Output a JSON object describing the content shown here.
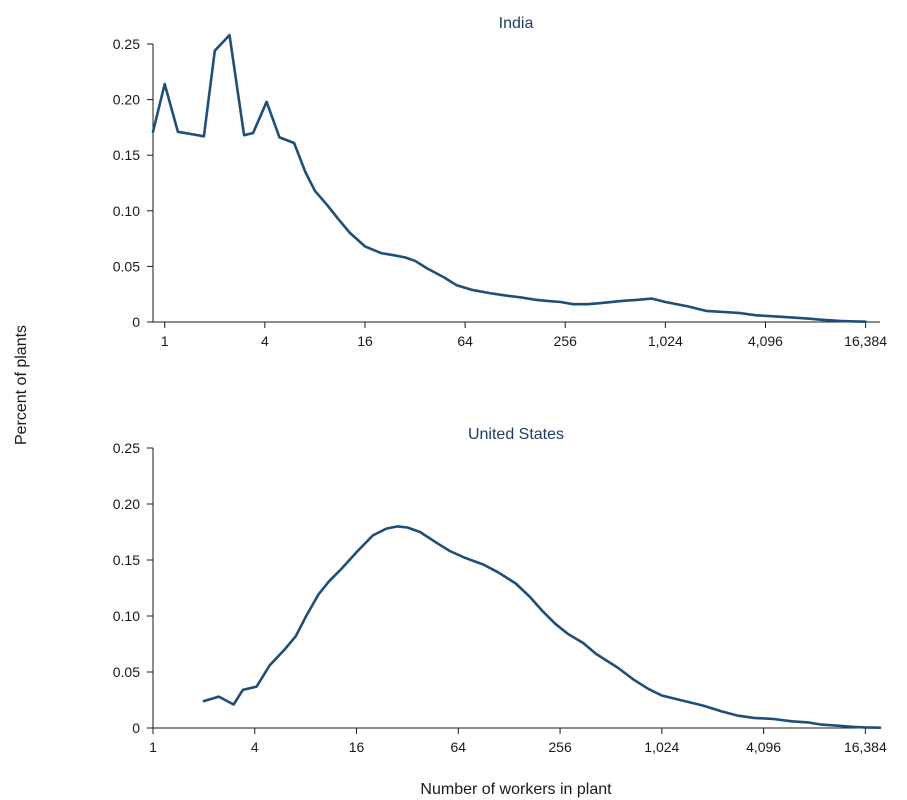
{
  "figure": {
    "ylabel": "Percent of plants",
    "xlabel": "Number of workers in plant"
  },
  "colors": {
    "line": "#1f4e79",
    "title": "#1f3d66",
    "axis": "#1a1a1a"
  },
  "chart_data": [
    {
      "type": "line",
      "title": "India",
      "xscale": "log2",
      "xlim": [
        0.85,
        20000
      ],
      "ylim": [
        0,
        0.25
      ],
      "xticks": [
        1,
        4,
        16,
        64,
        256,
        1024,
        4096,
        16384
      ],
      "xtick_labels": [
        "1",
        "4",
        "16",
        "64",
        "256",
        "1,024",
        "4,096",
        "16,384"
      ],
      "yticks": [
        0,
        0.05,
        0.1,
        0.15,
        0.2,
        0.25
      ],
      "ytick_labels": [
        "0",
        "0.05",
        "0.10",
        "0.15",
        "0.20",
        "0.25"
      ],
      "series": [
        {
          "x": [
            0.85,
            1,
            1.2,
            1.45,
            1.72,
            2.0,
            2.45,
            3.0,
            3.4,
            4.1,
            4.9,
            6.0,
            7.0,
            8.0,
            9.5,
            11,
            13,
            16,
            20,
            24,
            28,
            32,
            38,
            48,
            57,
            70,
            90,
            110,
            140,
            170,
            200,
            240,
            285,
            350,
            420,
            560,
            700,
            850,
            1024,
            1400,
            1800,
            2300,
            2900,
            3600,
            4700,
            6000,
            7500,
            9000,
            11500,
            14000,
            16384
          ],
          "y": [
            0.171,
            0.214,
            0.171,
            0.169,
            0.167,
            0.244,
            0.258,
            0.168,
            0.17,
            0.198,
            0.166,
            0.161,
            0.135,
            0.118,
            0.105,
            0.093,
            0.08,
            0.068,
            0.062,
            0.06,
            0.058,
            0.055,
            0.048,
            0.04,
            0.033,
            0.029,
            0.026,
            0.024,
            0.022,
            0.02,
            0.019,
            0.018,
            0.016,
            0.016,
            0.017,
            0.019,
            0.02,
            0.021,
            0.018,
            0.014,
            0.01,
            0.009,
            0.008,
            0.006,
            0.005,
            0.004,
            0.003,
            0.002,
            0.001,
            0.0005,
            0.0003
          ]
        }
      ]
    },
    {
      "type": "line",
      "title": "United States",
      "xscale": "log2",
      "xlim": [
        1,
        20000
      ],
      "ylim": [
        0,
        0.25
      ],
      "xticks": [
        1,
        4,
        16,
        64,
        256,
        1024,
        4096,
        16384
      ],
      "xtick_labels": [
        "1",
        "4",
        "16",
        "64",
        "256",
        "1,024",
        "4,096",
        "16,384"
      ],
      "yticks": [
        0,
        0.05,
        0.1,
        0.15,
        0.2,
        0.25
      ],
      "ytick_labels": [
        "0",
        "0.05",
        "0.10",
        "0.15",
        "0.20",
        "0.25"
      ],
      "series": [
        {
          "x": [
            2.0,
            2.45,
            3.0,
            3.4,
            4.1,
            4.9,
            6.0,
            7.0,
            8.0,
            9.5,
            11,
            13,
            16,
            20,
            24,
            28,
            32,
            38,
            48,
            57,
            70,
            90,
            110,
            140,
            170,
            200,
            240,
            285,
            350,
            420,
            560,
            700,
            850,
            1024,
            1400,
            1800,
            2300,
            2900,
            3600,
            4700,
            6000,
            7500,
            9000,
            11500,
            14000,
            16384,
            20000
          ],
          "y": [
            0.024,
            0.028,
            0.021,
            0.034,
            0.037,
            0.056,
            0.07,
            0.082,
            0.099,
            0.119,
            0.131,
            0.142,
            0.157,
            0.172,
            0.178,
            0.18,
            0.179,
            0.175,
            0.165,
            0.158,
            0.152,
            0.146,
            0.139,
            0.129,
            0.117,
            0.105,
            0.093,
            0.084,
            0.076,
            0.066,
            0.054,
            0.043,
            0.035,
            0.029,
            0.024,
            0.02,
            0.015,
            0.011,
            0.009,
            0.008,
            0.006,
            0.005,
            0.003,
            0.002,
            0.001,
            0.0005,
            0.0003
          ]
        }
      ]
    }
  ]
}
